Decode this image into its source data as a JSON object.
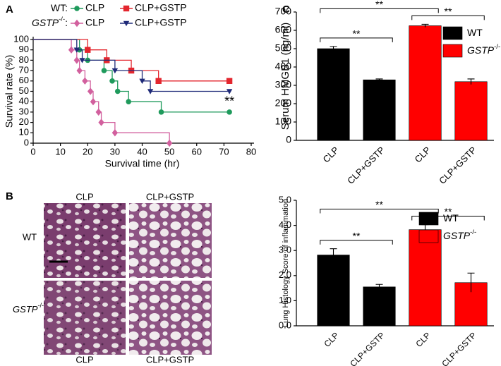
{
  "chart_data": [
    {
      "type": "survival",
      "panel": "A",
      "xlabel": "Survival time (hr)",
      "ylabel": "Survival rate (%)",
      "xlim": [
        0,
        80
      ],
      "xticks": [
        0,
        10,
        20,
        30,
        40,
        50,
        60,
        70,
        80
      ],
      "ylim": [
        0,
        100
      ],
      "yticks": [
        0,
        10,
        20,
        30,
        40,
        50,
        60,
        70,
        80,
        90,
        100
      ],
      "legend_groups": [
        {
          "label": "WT:"
        },
        {
          "label": "GSTP",
          "sup": "-/-",
          "suffix": ":"
        }
      ],
      "annotation": "**",
      "series": [
        {
          "name": "CLP",
          "group": 0,
          "color": "#1f9a5c",
          "marker": "circle",
          "x": [
            0,
            17,
            20,
            26,
            29,
            31,
            35,
            47,
            72
          ],
          "values": [
            100,
            90,
            80,
            70,
            60,
            50,
            40,
            30,
            30
          ]
        },
        {
          "name": "CLP+GSTP",
          "group": 0,
          "color": "#e3262e",
          "marker": "square",
          "x": [
            0,
            20,
            27,
            36,
            46,
            72
          ],
          "values": [
            100,
            90,
            80,
            70,
            60,
            60
          ]
        },
        {
          "name": "CLP",
          "group": 1,
          "color": "#d2609e",
          "marker": "diamond",
          "x": [
            0,
            14,
            16,
            17,
            19,
            21,
            22,
            24,
            25,
            30,
            50
          ],
          "values": [
            100,
            90,
            80,
            70,
            60,
            50,
            40,
            30,
            20,
            10,
            0
          ]
        },
        {
          "name": "CLP+GSTP",
          "group": 1,
          "color": "#1f2a78",
          "marker": "triangle",
          "x": [
            0,
            16,
            18,
            30,
            40,
            43,
            72
          ],
          "values": [
            100,
            90,
            80,
            70,
            60,
            50,
            50
          ]
        }
      ]
    },
    {
      "type": "bar",
      "panel": "C",
      "ylabel": "Serum HMGB1 (ng/ml)",
      "categories": [
        "CLP",
        "CLP+GSTP",
        "CLP",
        "CLP+GSTP"
      ],
      "values": [
        500,
        330,
        625,
        320
      ],
      "errors": [
        12,
        5,
        8,
        15
      ],
      "colors": [
        "#000000",
        "#000000",
        "#ff0000",
        "#ff0000"
      ],
      "legend": [
        {
          "label": "WT",
          "color": "#000000"
        },
        {
          "label": "GSTP",
          "sup": "-/-",
          "color": "#ff0000"
        }
      ],
      "comparisons": [
        {
          "label": "**",
          "between": [
            0,
            1
          ]
        },
        {
          "label": "**",
          "between": [
            2,
            3
          ]
        },
        {
          "label": "**",
          "between": [
            0,
            2
          ]
        }
      ],
      "ylim": [
        0,
        700
      ],
      "yticks": [
        0,
        100,
        200,
        300,
        400,
        500,
        600,
        700
      ]
    },
    {
      "type": "bar",
      "ylabel": "Lung Histology Score of inflammation",
      "categories": [
        "CLP",
        "CLP+GSTP",
        "CLP",
        "CLP+GSTP"
      ],
      "values": [
        2.82,
        1.55,
        3.83,
        1.72
      ],
      "errors": [
        0.25,
        0.1,
        0.2,
        0.38
      ],
      "colors": [
        "#000000",
        "#000000",
        "#ff0000",
        "#ff0000"
      ],
      "legend": [
        {
          "label": "WT",
          "color": "#000000"
        },
        {
          "label": "GSTP",
          "sup": "-/-",
          "color": "#ff0000"
        }
      ],
      "comparisons": [
        {
          "label": "**",
          "between": [
            0,
            1
          ]
        },
        {
          "label": "**",
          "between": [
            2,
            3
          ]
        },
        {
          "label": "**",
          "between": [
            0,
            2
          ]
        }
      ],
      "ylim": [
        0,
        5
      ],
      "yticks": [
        {
          "value": 0,
          "label": "0.0"
        },
        {
          "value": 1,
          "label": "1.0"
        },
        {
          "value": 2,
          "label": "2.0"
        },
        {
          "value": 3,
          "label": "3.0"
        },
        {
          "value": 4,
          "label": "4.0"
        },
        {
          "value": 5,
          "label": "5.0"
        }
      ]
    }
  ],
  "histology": {
    "panel": "B",
    "columns_top": [
      "CLP",
      "CLP+GSTP"
    ],
    "columns_bottom": [
      "CLP",
      "CLP+GSTP"
    ],
    "rows": [
      {
        "label": "WT"
      },
      {
        "label": "GSTP",
        "sup": "-/-"
      }
    ]
  }
}
